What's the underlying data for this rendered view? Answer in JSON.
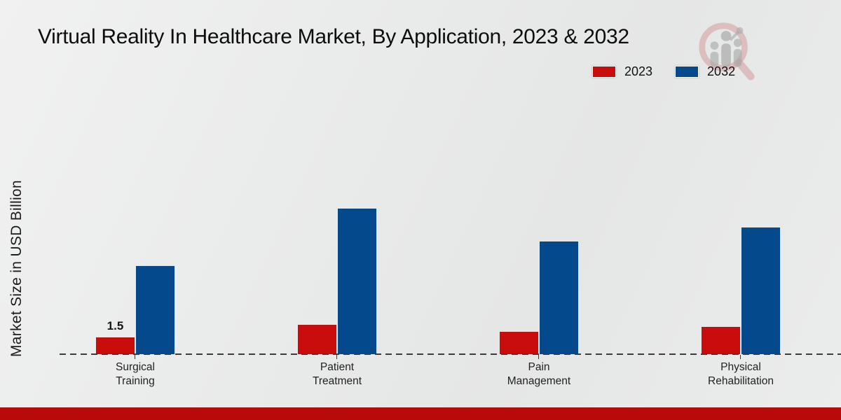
{
  "title": "Virtual Reality In Healthcare Market, By Application, 2023 & 2032",
  "ylabel": "Market Size in USD Billion",
  "legend": {
    "items": [
      {
        "label": "2023",
        "color": "#c90c0c"
      },
      {
        "label": "2032",
        "color": "#04498c"
      }
    ]
  },
  "watermark": {
    "name": "magnifier-bar-chart-logo"
  },
  "footer": {
    "bar_color": "#b90a0a"
  },
  "chart_data": {
    "type": "bar",
    "categories": [
      "Surgical\nTraining",
      "Patient\nTreatment",
      "Pain\nManagement",
      "Physical\nRehabilitation"
    ],
    "series": [
      {
        "name": "2023",
        "color": "#c90c0c",
        "values": [
          1.5,
          2.6,
          2.0,
          2.4
        ]
      },
      {
        "name": "2032",
        "color": "#04498c",
        "values": [
          7.6,
          12.5,
          9.7,
          10.9
        ]
      }
    ],
    "title": "Virtual Reality In Healthcare Market, By Application, 2023 & 2032",
    "xlabel": "",
    "ylabel": "Market Size in USD Billion",
    "ylim": [
      0,
      14
    ],
    "grid": false,
    "legend_position": "top-right",
    "bar_labels": [
      {
        "series": "2023",
        "category": "Surgical Training",
        "text": "1.5"
      }
    ]
  }
}
